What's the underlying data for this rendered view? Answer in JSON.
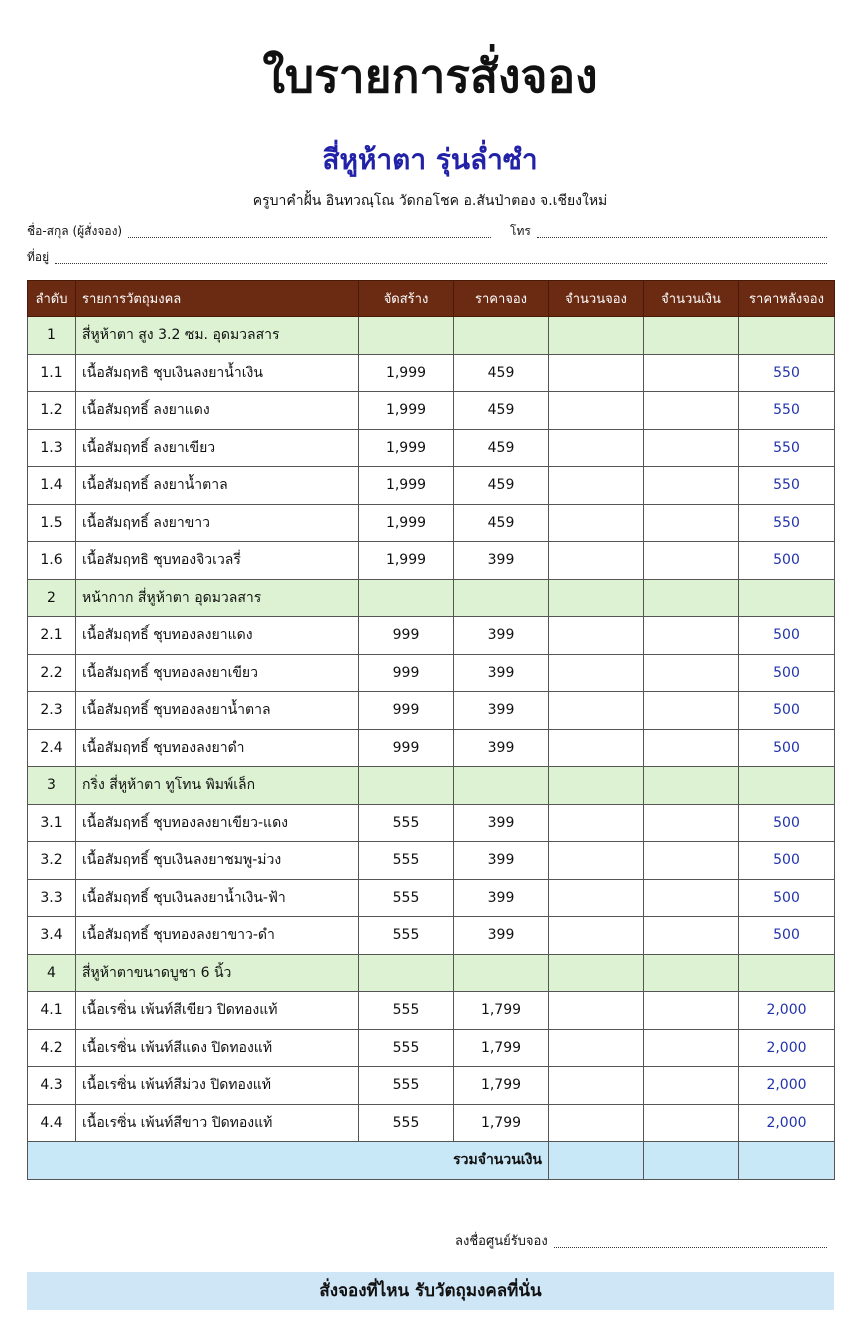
{
  "header": {
    "title": "ใบรายการสั่งจอง",
    "subtitle": "สี่หูห้าตา รุ่นล่ำซำ",
    "org": "ครูบาคำฝั้น อินทวณฺโณ วัดกอโชค อ.สันป่าตอง จ.เชียงใหม่",
    "name_label": "ชื่อ-สกุล (ผู้สั่งจอง)",
    "phone_label": "โทร",
    "address_label": "ที่อยู่"
  },
  "colors": {
    "header_bg": "#6b2a12",
    "group_bg": "#dcf2d2",
    "total_bg": "#c8e8f8",
    "after_price": "#2233aa",
    "subtitle": "#2222a8"
  },
  "table": {
    "columns": [
      "ลำดับ",
      "รายการวัตถุมงคล",
      "จัดสร้าง",
      "ราคาจอง",
      "จำนวนจอง",
      "จำนวนเงิน",
      "ราคาหลังจอง"
    ],
    "rows": [
      {
        "no": "1",
        "name": "สี่หูห้าตา  สูง 3.2 ซม. อุดมวลสาร",
        "group": true
      },
      {
        "no": "1.1",
        "name": "เนื้อสัมฤทธิ ชุบเงินลงยาน้ำเงิน",
        "made": "1,999",
        "price": "459",
        "after": "550"
      },
      {
        "no": "1.2",
        "name": "เนื้อสัมฤทธิ์ ลงยาแดง",
        "made": "1,999",
        "price": "459",
        "after": "550"
      },
      {
        "no": "1.3",
        "name": "เนื้อสัมฤทธิ์ ลงยาเขียว",
        "made": "1,999",
        "price": "459",
        "after": "550"
      },
      {
        "no": "1.4",
        "name": "เนื้อสัมฤทธิ์ ลงยาน้ำตาล",
        "made": "1,999",
        "price": "459",
        "after": "550"
      },
      {
        "no": "1.5",
        "name": "เนื้อสัมฤทธิ์ ลงยาขาว",
        "made": "1,999",
        "price": "459",
        "after": "550"
      },
      {
        "no": "1.6",
        "name": "เนื้อสัมฤทธิ ชุบทองจิวเวลรี่",
        "made": "1,999",
        "price": "399",
        "after": "500"
      },
      {
        "no": "2",
        "name": "หน้ากาก สี่หูห้าตา อุดมวลสาร",
        "group": true
      },
      {
        "no": "2.1",
        "name": "เนื้อสัมฤทธิ์ ชุบทองลงยาแดง",
        "made": "999",
        "price": "399",
        "after": "500"
      },
      {
        "no": "2.2",
        "name": "เนื้อสัมฤทธิ์ ชุบทองลงยาเขียว",
        "made": "999",
        "price": "399",
        "after": "500"
      },
      {
        "no": "2.3",
        "name": "เนื้อสัมฤทธิ์ ชุบทองลงยาน้ำตาล",
        "made": "999",
        "price": "399",
        "after": "500"
      },
      {
        "no": "2.4",
        "name": "เนื้อสัมฤทธิ์ ชุบทองลงยาดำ",
        "made": "999",
        "price": "399",
        "after": "500"
      },
      {
        "no": "3",
        "name": "กริ่ง สี่หูห้าตา ทูโทน พิมพ์เล็ก",
        "group": true
      },
      {
        "no": "3.1",
        "name": "เนื้อสัมฤทธิ์ ชุบทองลงยาเขียว-แดง",
        "made": "555",
        "price": "399",
        "after": "500"
      },
      {
        "no": "3.2",
        "name": "เนื้อสัมฤทธิ์ ชุบเงินลงยาชมพู-ม่วง",
        "made": "555",
        "price": "399",
        "after": "500"
      },
      {
        "no": "3.3",
        "name": "เนื้อสัมฤทธิ์ ชุบเงินลงยาน้ำเงิน-ฟ้า",
        "made": "555",
        "price": "399",
        "after": "500"
      },
      {
        "no": "3.4",
        "name": "เนื้อสัมฤทธิ์ ชุบทองลงยาขาว-ดำ",
        "made": "555",
        "price": "399",
        "after": "500"
      },
      {
        "no": "4",
        "name": "สี่หูห้าตาขนาดบูชา 6 นิ้ว",
        "group": true
      },
      {
        "no": "4.1",
        "name": "เนื้อเรซิ่น เพ้นท์สีเขียว ปิดทองแท้",
        "made": "555",
        "price": "1,799",
        "after": "2,000"
      },
      {
        "no": "4.2",
        "name": "เนื้อเรซิ่น เพ้นท์สีแดง ปิดทองแท้",
        "made": "555",
        "price": "1,799",
        "after": "2,000"
      },
      {
        "no": "4.3",
        "name": "เนื้อเรซิ่น เพ้นท์สีม่วง ปิดทองแท้",
        "made": "555",
        "price": "1,799",
        "after": "2,000"
      },
      {
        "no": "4.4",
        "name": "เนื้อเรซิ่น เพ้นท์สีขาว ปิดทองแท้",
        "made": "555",
        "price": "1,799",
        "after": "2,000"
      }
    ],
    "total_label": "รวมจำนวนเงิน"
  },
  "footer": {
    "sign_label": "ลงชื่อศูนย์รับจอง",
    "banner": "สั่งจองที่ไหน รับวัตถุมงคลที่นั่น"
  }
}
